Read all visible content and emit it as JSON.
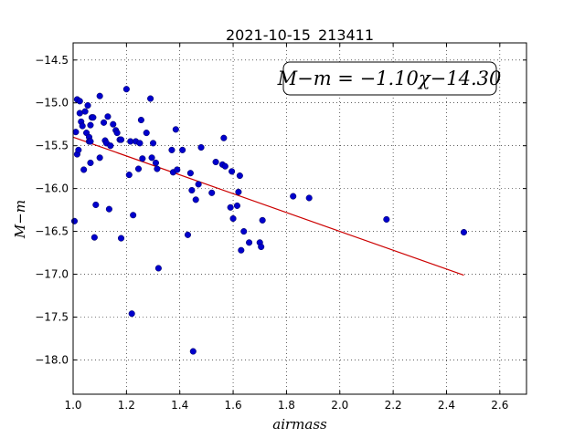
{
  "chart_data": {
    "type": "scatter",
    "title": "2021-10-15_213411",
    "xlabel": "airmass",
    "ylabel": "M−m",
    "xlim": [
      1.0,
      2.7
    ],
    "ylim": [
      -18.4,
      -14.3
    ],
    "y_inverted": true,
    "grid": true,
    "x_ticks": [
      1.0,
      1.2,
      1.4,
      1.6,
      1.8,
      2.0,
      2.2,
      2.4,
      2.6
    ],
    "x_tick_labels": [
      "1.0",
      "1.2",
      "1.4",
      "1.6",
      "1.8",
      "2.0",
      "2.2",
      "2.4",
      "2.6"
    ],
    "y_ticks": [
      -14.5,
      -15.0,
      -15.5,
      -16.0,
      -16.5,
      -17.0,
      -17.5,
      -18.0
    ],
    "y_tick_labels": [
      "−14.5",
      "−15.0",
      "−15.5",
      "−16.0",
      "−16.5",
      "−17.0",
      "−17.5",
      "−18.0"
    ],
    "annotation": "M−m = −1.10χ−14.30",
    "point_color": "#0000cc",
    "fit_color": "#cc0000",
    "fit": {
      "slope": -1.1,
      "intercept": -14.3,
      "x_range": [
        1.0,
        2.465
      ]
    },
    "points": [
      [
        1.005,
        -16.38
      ],
      [
        1.01,
        -15.34
      ],
      [
        1.015,
        -14.96
      ],
      [
        1.015,
        -15.6
      ],
      [
        1.02,
        -15.55
      ],
      [
        1.025,
        -14.98
      ],
      [
        1.025,
        -15.12
      ],
      [
        1.03,
        -15.22
      ],
      [
        1.035,
        -15.27
      ],
      [
        1.04,
        -15.78
      ],
      [
        1.045,
        -15.1
      ],
      [
        1.05,
        -15.35
      ],
      [
        1.055,
        -15.03
      ],
      [
        1.06,
        -15.4
      ],
      [
        1.06,
        -15.45
      ],
      [
        1.065,
        -15.45
      ],
      [
        1.065,
        -15.7
      ],
      [
        1.065,
        -15.26
      ],
      [
        1.07,
        -15.17
      ],
      [
        1.075,
        -15.17
      ],
      [
        1.08,
        -16.57
      ],
      [
        1.085,
        -16.19
      ],
      [
        1.1,
        -14.92
      ],
      [
        1.1,
        -15.64
      ],
      [
        1.115,
        -15.23
      ],
      [
        1.12,
        -15.44
      ],
      [
        1.125,
        -15.47
      ],
      [
        1.13,
        -15.16
      ],
      [
        1.135,
        -16.24
      ],
      [
        1.14,
        -15.5
      ],
      [
        1.15,
        -15.25
      ],
      [
        1.16,
        -15.32
      ],
      [
        1.165,
        -15.35
      ],
      [
        1.175,
        -15.43
      ],
      [
        1.18,
        -15.43
      ],
      [
        1.18,
        -16.58
      ],
      [
        1.2,
        -14.84
      ],
      [
        1.21,
        -15.84
      ],
      [
        1.215,
        -15.45
      ],
      [
        1.22,
        -17.46
      ],
      [
        1.225,
        -16.31
      ],
      [
        1.235,
        -15.45
      ],
      [
        1.245,
        -15.77
      ],
      [
        1.25,
        -15.47
      ],
      [
        1.255,
        -15.2
      ],
      [
        1.26,
        -15.65
      ],
      [
        1.275,
        -15.35
      ],
      [
        1.29,
        -14.95
      ],
      [
        1.295,
        -15.64
      ],
      [
        1.3,
        -15.47
      ],
      [
        1.31,
        -15.7
      ],
      [
        1.315,
        -15.77
      ],
      [
        1.32,
        -16.93
      ],
      [
        1.37,
        -15.55
      ],
      [
        1.375,
        -15.81
      ],
      [
        1.385,
        -15.31
      ],
      [
        1.39,
        -15.78
      ],
      [
        1.41,
        -15.55
      ],
      [
        1.43,
        -16.54
      ],
      [
        1.44,
        -15.82
      ],
      [
        1.445,
        -16.02
      ],
      [
        1.45,
        -17.9
      ],
      [
        1.46,
        -16.13
      ],
      [
        1.47,
        -15.95
      ],
      [
        1.48,
        -15.52
      ],
      [
        1.52,
        -16.05
      ],
      [
        1.535,
        -15.69
      ],
      [
        1.56,
        -15.72
      ],
      [
        1.565,
        -15.41
      ],
      [
        1.57,
        -15.74
      ],
      [
        1.59,
        -16.22
      ],
      [
        1.595,
        -15.8
      ],
      [
        1.6,
        -16.35
      ],
      [
        1.615,
        -16.2
      ],
      [
        1.62,
        -16.04
      ],
      [
        1.625,
        -15.85
      ],
      [
        1.63,
        -16.72
      ],
      [
        1.64,
        -16.5
      ],
      [
        1.66,
        -16.63
      ],
      [
        1.7,
        -16.63
      ],
      [
        1.705,
        -16.68
      ],
      [
        1.71,
        -16.37
      ],
      [
        1.825,
        -16.09
      ],
      [
        1.885,
        -16.11
      ],
      [
        2.175,
        -16.36
      ],
      [
        2.465,
        -16.51
      ]
    ]
  }
}
